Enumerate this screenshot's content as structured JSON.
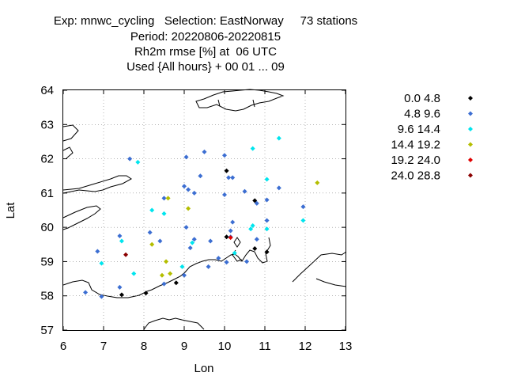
{
  "header": {
    "line1": "Exp: mnwc_cycling   Selection: EastNorway     73 stations",
    "line2": "Period: 20220806-20220815",
    "line3": "Rh2m rmse [%] at  06 UTC",
    "line4": "Used {All hours} + 00 01 ... 09"
  },
  "chart_data": {
    "type": "scatter",
    "xlabel": "Lon",
    "ylabel": "Lat",
    "xlim": [
      6,
      13
    ],
    "ylim": [
      57,
      64
    ],
    "xticks": [
      "6",
      "7",
      "8",
      "9",
      "10",
      "11",
      "12",
      "13"
    ],
    "yticks": [
      "57",
      "58",
      "59",
      "60",
      "61",
      "62",
      "63",
      "64"
    ],
    "legend_position": "right",
    "legend": [
      {
        "label": "0.0 4.8",
        "color": "#000000"
      },
      {
        "label": "4.8 9.6",
        "color": "#3c6ed2"
      },
      {
        "label": "9.6 14.4",
        "color": "#00e5ee"
      },
      {
        "label": "14.4 19.2",
        "color": "#b4be00"
      },
      {
        "label": "19.2 24.0",
        "color": "#e00000"
      },
      {
        "label": "24.0 28.8",
        "color": "#8b0000"
      }
    ],
    "series": [
      {
        "bin": 0,
        "points": [
          [
            10.05,
            61.65
          ],
          [
            10.75,
            60.78
          ],
          [
            11.05,
            59.28
          ],
          [
            10.75,
            59.38
          ],
          [
            10.05,
            59.72
          ],
          [
            8.8,
            58.38
          ],
          [
            8.05,
            58.08
          ],
          [
            7.45,
            58.03
          ]
        ]
      },
      {
        "bin": 1,
        "points": [
          [
            7.65,
            62.0
          ],
          [
            9.05,
            62.05
          ],
          [
            9.5,
            62.2
          ],
          [
            10.0,
            62.1
          ],
          [
            10.1,
            61.45
          ],
          [
            10.5,
            61.05
          ],
          [
            10.8,
            60.7
          ],
          [
            11.05,
            60.8
          ],
          [
            11.35,
            61.15
          ],
          [
            11.95,
            60.6
          ],
          [
            9.4,
            61.5
          ],
          [
            9.0,
            61.2
          ],
          [
            9.1,
            61.1
          ],
          [
            9.25,
            61.0
          ],
          [
            8.5,
            60.85
          ],
          [
            10.0,
            60.95
          ],
          [
            10.2,
            60.15
          ],
          [
            10.8,
            59.65
          ],
          [
            11.05,
            60.2
          ],
          [
            10.55,
            59.0
          ],
          [
            10.05,
            58.98
          ],
          [
            9.85,
            59.1
          ],
          [
            9.65,
            59.6
          ],
          [
            9.6,
            58.85
          ],
          [
            9.15,
            59.4
          ],
          [
            9.25,
            59.65
          ],
          [
            9.0,
            58.6
          ],
          [
            8.15,
            59.85
          ],
          [
            8.4,
            59.6
          ],
          [
            7.4,
            59.75
          ],
          [
            6.85,
            59.3
          ],
          [
            7.4,
            58.25
          ],
          [
            6.55,
            58.1
          ],
          [
            6.95,
            57.98
          ],
          [
            8.5,
            58.35
          ],
          [
            10.15,
            59.72
          ],
          [
            10.15,
            59.9
          ],
          [
            9.05,
            60.0
          ],
          [
            10.2,
            61.45
          ]
        ]
      },
      {
        "bin": 2,
        "points": [
          [
            7.85,
            61.9
          ],
          [
            10.7,
            62.3
          ],
          [
            11.35,
            62.6
          ],
          [
            11.05,
            61.4
          ],
          [
            8.2,
            60.5
          ],
          [
            8.5,
            60.4
          ],
          [
            10.7,
            60.05
          ],
          [
            10.65,
            59.95
          ],
          [
            11.05,
            59.95
          ],
          [
            11.95,
            60.2
          ],
          [
            9.2,
            59.55
          ],
          [
            6.95,
            58.95
          ],
          [
            7.45,
            59.6
          ],
          [
            7.75,
            58.65
          ],
          [
            8.95,
            58.85
          ],
          [
            10.25,
            59.25
          ]
        ]
      },
      {
        "bin": 3,
        "points": [
          [
            12.3,
            61.3
          ],
          [
            8.6,
            60.85
          ],
          [
            9.1,
            60.55
          ],
          [
            8.2,
            59.5
          ],
          [
            8.55,
            59.0
          ],
          [
            8.45,
            58.6
          ],
          [
            8.65,
            58.65
          ]
        ]
      },
      {
        "bin": 4,
        "points": [
          [
            10.15,
            59.7
          ]
        ]
      },
      {
        "bin": 5,
        "points": [
          [
            7.55,
            59.2
          ]
        ]
      }
    ]
  }
}
